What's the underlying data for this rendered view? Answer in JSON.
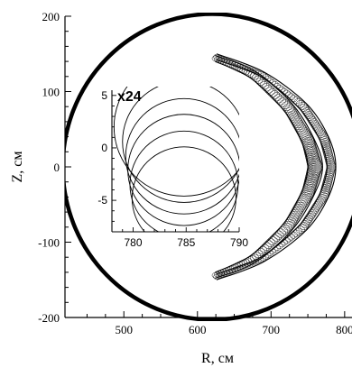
{
  "chart_data": [
    {
      "type": "line",
      "xlabel": "R, см",
      "ylabel": "Z, см",
      "xlim": [
        420,
        810
      ],
      "ylim": [
        -200,
        200
      ],
      "x_ticks": [
        500,
        600,
        700,
        800
      ],
      "y_ticks": [
        200,
        100,
        0,
        -100,
        -200
      ],
      "x_tick_labels": [
        "500",
        "600",
        "700",
        "800"
      ],
      "y_tick_labels": [
        "200",
        "100",
        "0",
        "-100",
        "-200"
      ],
      "grid": false,
      "legend": "none",
      "series": [
        {
          "shape": "circle",
          "center": [
            620,
            0
          ],
          "radius": 203
        },
        {
          "shape": "crescent-band",
          "outer_points": [
            [
              624,
              148
            ],
            [
              680,
              126
            ],
            [
              730,
              82
            ],
            [
              758,
              38
            ],
            [
              770,
              0
            ],
            [
              758,
              -38
            ],
            [
              730,
              -82
            ],
            [
              680,
              -126
            ],
            [
              624,
              -148
            ]
          ],
          "inner_points": [
            [
              624,
              140
            ],
            [
              672,
              118
            ],
            [
              718,
              74
            ],
            [
              742,
              32
            ],
            [
              750,
              0
            ],
            [
              742,
              -32
            ],
            [
              718,
              -74
            ],
            [
              672,
              -118
            ],
            [
              624,
              -140
            ]
          ]
        },
        {
          "shape": "crescent-band",
          "outer_points": [
            [
              626,
              150
            ],
            [
              690,
              126
            ],
            [
              748,
              84
            ],
            [
              778,
              40
            ],
            [
              788,
              0
            ],
            [
              778,
              -40
            ],
            [
              748,
              -84
            ],
            [
              690,
              -126
            ],
            [
              626,
              -150
            ]
          ],
          "inner_points": [
            [
              626,
              142
            ],
            [
              686,
              120
            ],
            [
              738,
              78
            ],
            [
              766,
              36
            ],
            [
              776,
              0
            ],
            [
              766,
              -36
            ],
            [
              738,
              -78
            ],
            [
              686,
              -120
            ],
            [
              626,
              -142
            ]
          ]
        }
      ]
    },
    {
      "type": "line",
      "inset": true,
      "title": "x24",
      "xlim": [
        778,
        790
      ],
      "ylim": [
        -8,
        5.5
      ],
      "x_ticks": [
        780,
        785,
        790
      ],
      "y_ticks": [
        5,
        0,
        -5
      ],
      "x_tick_labels": [
        "780",
        "785",
        "790"
      ],
      "y_tick_labels": [
        "5",
        "0",
        "-5"
      ],
      "series": [
        {
          "center": [
            784.8,
            2.0
          ],
          "radius": 6.6
        },
        {
          "center": [
            784.8,
            0.6
          ],
          "radius": 5.8
        },
        {
          "center": [
            784.8,
            -0.8
          ],
          "radius": 5.5
        },
        {
          "center": [
            784.8,
            -2.1
          ],
          "radius": 5.3
        },
        {
          "center": [
            784.8,
            -3.5
          ],
          "radius": 5.1
        },
        {
          "center": [
            784.8,
            -4.8
          ],
          "radius": 4.9
        }
      ]
    }
  ]
}
